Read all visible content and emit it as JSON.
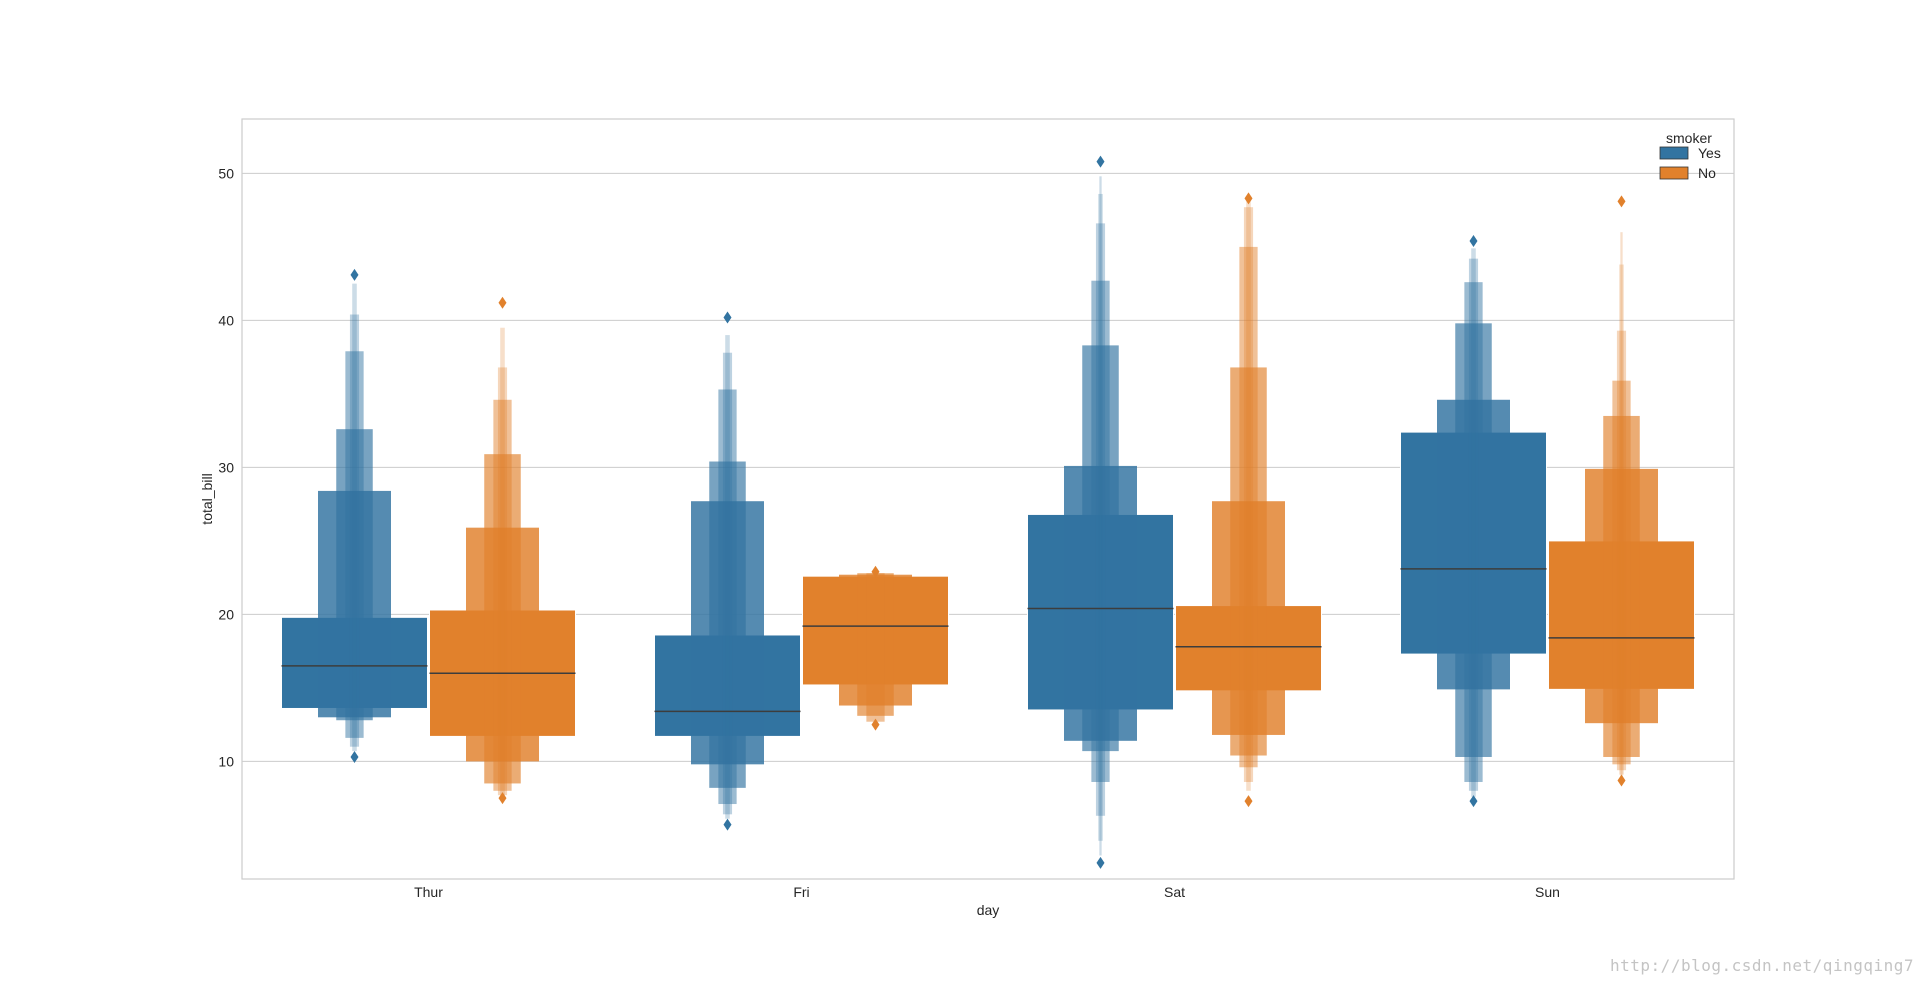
{
  "chart_data": {
    "type": "boxen",
    "xlabel": "day",
    "ylabel": "total_bill",
    "categories": [
      "Thur",
      "Fri",
      "Sat",
      "Sun"
    ],
    "yticks": [
      10,
      20,
      30,
      40,
      50
    ],
    "ylim": [
      2.0,
      53.7
    ],
    "grid": true,
    "legend": {
      "title": "smoker",
      "placement": "top-right"
    },
    "hue_colors": {
      "Yes": "#3274a1",
      "No": "#e1812c"
    },
    "series": [
      {
        "name": "Yes",
        "color": "#3274a1",
        "groups": [
          {
            "category": "Thur",
            "median": 16.5,
            "letter_values": [
              [
                13.6,
                19.8
              ],
              [
                13.0,
                28.4
              ],
              [
                12.8,
                32.6
              ],
              [
                11.6,
                37.9
              ],
              [
                11.0,
                40.4
              ],
              [
                10.7,
                42.5
              ]
            ],
            "outliers": [
              10.3,
              43.1
            ]
          },
          {
            "category": "Fri",
            "median": 13.4,
            "letter_values": [
              [
                11.7,
                18.6
              ],
              [
                9.8,
                27.7
              ],
              [
                8.2,
                30.4
              ],
              [
                7.1,
                35.3
              ],
              [
                6.4,
                37.8
              ],
              [
                6.1,
                39.0
              ]
            ],
            "outliers": [
              5.7,
              40.2
            ]
          },
          {
            "category": "Sat",
            "median": 20.4,
            "letter_values": [
              [
                13.5,
                26.8
              ],
              [
                11.4,
                30.1
              ],
              [
                10.7,
                38.3
              ],
              [
                8.6,
                42.7
              ],
              [
                6.3,
                46.6
              ],
              [
                4.6,
                48.6
              ],
              [
                3.6,
                49.8
              ]
            ],
            "outliers": [
              3.1,
              50.8
            ]
          },
          {
            "category": "Sun",
            "median": 23.1,
            "letter_values": [
              [
                17.3,
                32.4
              ],
              [
                14.9,
                34.6
              ],
              [
                10.3,
                39.8
              ],
              [
                8.6,
                42.6
              ],
              [
                8.0,
                44.2
              ],
              [
                7.6,
                44.9
              ]
            ],
            "outliers": [
              7.3,
              45.4
            ]
          }
        ]
      },
      {
        "name": "No",
        "color": "#e1812c",
        "groups": [
          {
            "category": "Thur",
            "median": 16.0,
            "letter_values": [
              [
                11.7,
                20.3
              ],
              [
                10.0,
                25.9
              ],
              [
                8.5,
                30.9
              ],
              [
                8.0,
                34.6
              ],
              [
                7.7,
                36.8
              ],
              [
                7.6,
                39.5
              ]
            ],
            "outliers": [
              7.5,
              41.2
            ]
          },
          {
            "category": "Fri",
            "median": 19.2,
            "letter_values": [
              [
                15.2,
                22.6
              ],
              [
                13.8,
                22.7
              ],
              [
                13.1,
                22.8
              ],
              [
                12.7,
                22.8
              ]
            ],
            "outliers": [
              12.5,
              22.9
            ]
          },
          {
            "category": "Sat",
            "median": 17.8,
            "letter_values": [
              [
                14.8,
                20.6
              ],
              [
                11.8,
                27.7
              ],
              [
                10.4,
                36.8
              ],
              [
                9.6,
                45.0
              ],
              [
                8.6,
                47.7
              ],
              [
                8.0,
                48.1
              ]
            ],
            "outliers": [
              7.3,
              48.3
            ]
          },
          {
            "category": "Sun",
            "median": 18.4,
            "letter_values": [
              [
                14.9,
                25.0
              ],
              [
                12.6,
                29.9
              ],
              [
                10.3,
                33.5
              ],
              [
                9.8,
                35.9
              ],
              [
                9.4,
                39.3
              ],
              [
                9.1,
                43.8
              ],
              [
                8.9,
                46.0
              ]
            ],
            "outliers": [
              8.7,
              48.1
            ]
          }
        ]
      }
    ]
  },
  "watermark": "http://blog.csdn.net/qingqing7"
}
